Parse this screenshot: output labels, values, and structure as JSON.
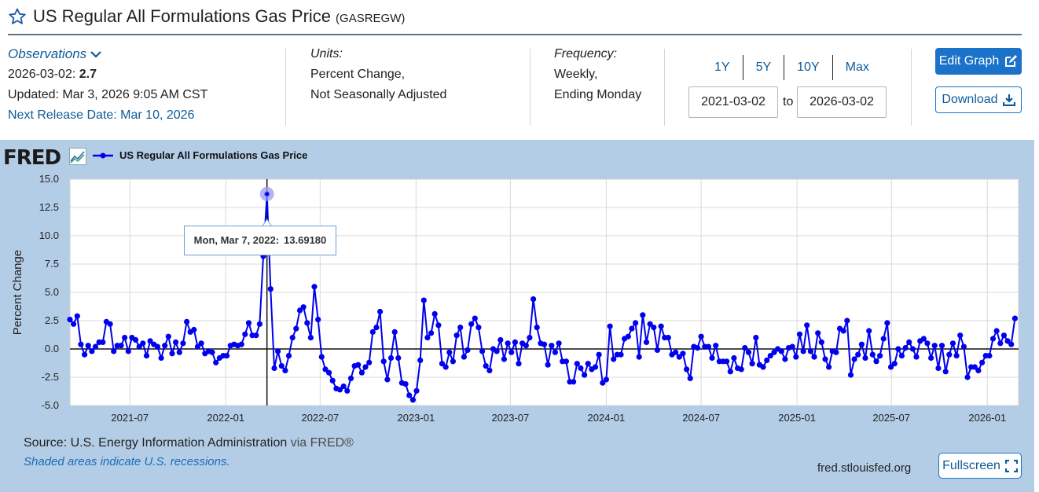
{
  "header": {
    "title": "US Regular All Formulations Gas Price",
    "series_id": "(GASREGW)"
  },
  "observations": {
    "label": "Observations",
    "date": "2026-03-02:",
    "value": "2.7",
    "updated": "Updated: Mar 3, 2026 9:05 AM CST",
    "next_release": "Next Release Date: Mar 10, 2026"
  },
  "units": {
    "label": "Units:",
    "line1": "Percent Change,",
    "line2": "Not Seasonally Adjusted"
  },
  "frequency": {
    "label": "Frequency:",
    "line1": "Weekly,",
    "line2": "Ending Monday"
  },
  "range": {
    "buttons": [
      "1Y",
      "5Y",
      "10Y",
      "Max"
    ],
    "start": "2021-03-02",
    "to_label": "to",
    "end": "2026-03-02"
  },
  "actions": {
    "edit_label": "Edit Graph",
    "download_label": "Download",
    "fullscreen_label": "Fullscreen"
  },
  "graph": {
    "logo": "FRED",
    "source_label": "Source: U.S. Energy Information Administration",
    "source_via": "via FRED®",
    "shaded_note": "Shaded areas indicate U.S. recessions.",
    "url": "fred.stlouisfed.org",
    "tooltip_date": "Mon, Mar 7, 2022:",
    "tooltip_value": "13.69180"
  },
  "colors": {
    "line": "#0000ee",
    "panel_bg": "#b4cde6",
    "accent": "#1a73c9",
    "link": "#0d5b9a"
  },
  "chart_data": {
    "type": "line",
    "title": "",
    "xlabel": "",
    "ylabel": "Percent Change",
    "ylim": [
      -5,
      15
    ],
    "yticks": [
      "15.0",
      "12.5",
      "10.0",
      "7.5",
      "5.0",
      "2.5",
      "0.0",
      "-2.5",
      "-5.0"
    ],
    "xticks": [
      "2021-07",
      "2022-01",
      "2022-07",
      "2023-01",
      "2023-07",
      "2024-01",
      "2024-07",
      "2025-01",
      "2025-07",
      "2026-01"
    ],
    "grid": true,
    "legend_position": "top-left",
    "series": [
      {
        "name": "US Regular All Formulations Gas Price",
        "x_start": "2021-03-08",
        "x_step_days": 7,
        "values": [
          2.6,
          2.2,
          2.9,
          0.4,
          -0.5,
          0.3,
          -0.2,
          0.2,
          0.6,
          0.6,
          2.4,
          2.2,
          -0.2,
          0.3,
          0.3,
          1.0,
          -0.2,
          1.0,
          0.8,
          0.2,
          0.5,
          -0.6,
          0.7,
          0.4,
          0.2,
          -0.8,
          0.3,
          1.1,
          -0.4,
          0.6,
          -0.3,
          0.5,
          2.4,
          1.5,
          1.7,
          0.2,
          0.5,
          -0.4,
          -0.2,
          -0.3,
          -1.2,
          -0.8,
          -0.6,
          -0.6,
          0.3,
          0.4,
          0.3,
          0.4,
          1.3,
          2.3,
          1.2,
          1.2,
          2.2,
          8.2,
          13.69,
          5.3,
          -1.7,
          -0.2,
          -1.5,
          -1.9,
          -0.6,
          1.0,
          1.8,
          3.4,
          3.7,
          2.3,
          1.0,
          5.5,
          2.6,
          -0.7,
          -1.8,
          -2.1,
          -2.8,
          -3.5,
          -3.6,
          -3.3,
          -3.7,
          -2.6,
          -1.5,
          -1.4,
          -2.1,
          -1.6,
          -1.2,
          1.5,
          1.9,
          3.3,
          -1.1,
          -2.7,
          -0.8,
          1.5,
          -0.8,
          -3.0,
          -3.1,
          -4.1,
          -4.5,
          -3.7,
          -1.0,
          4.3,
          1.0,
          1.4,
          3.1,
          2.1,
          -1.3,
          -1.6,
          -0.3,
          -1.1,
          1.2,
          1.9,
          -0.7,
          -0.1,
          2.2,
          2.7,
          1.9,
          -0.2,
          -1.5,
          -1.9,
          0.0,
          -0.2,
          0.8,
          -0.9,
          0.5,
          -0.3,
          0.6,
          -1.3,
          0.5,
          0.3,
          1.0,
          4.4,
          1.9,
          0.5,
          0.4,
          -1.4,
          0.3,
          -0.3,
          0.5,
          -1.1,
          -1.1,
          -2.9,
          -2.9,
          -1.3,
          -1.7,
          -2.3,
          -1.3,
          -1.8,
          -1.6,
          -0.5,
          -3.0,
          -2.7,
          2.0,
          -0.9,
          -0.5,
          -0.5,
          0.9,
          1.1,
          1.8,
          2.3,
          -0.7,
          3.0,
          0.6,
          2.2,
          1.9,
          -0.1,
          2.0,
          1.0,
          1.0,
          -0.5,
          -0.3,
          -0.7,
          -0.4,
          -1.8,
          -2.6,
          0.2,
          0.1,
          1.1,
          0.2,
          0.2,
          -0.8,
          0.3,
          -1.1,
          -1.1,
          -1.1,
          -2.0,
          -0.8,
          -1.7,
          -1.8,
          0.1,
          -0.3,
          -1.3,
          1.0,
          -1.4,
          -1.6,
          -1.0,
          -0.6,
          -0.3,
          0.0,
          -0.2,
          -0.9,
          0.1,
          0.2,
          -0.7,
          1.3,
          -0.2,
          2.1,
          -0.2,
          -0.7,
          1.4,
          0.6,
          -0.9,
          -1.6,
          -0.2,
          -0.3,
          1.8,
          1.6,
          2.5,
          -2.3,
          -0.9,
          -0.5,
          0.4,
          -0.8,
          1.6,
          -0.5,
          -1.1,
          -0.6,
          0.9,
          2.3,
          -1.6,
          -1.3,
          0.0,
          -0.6,
          0.1,
          0.6,
          0.0,
          -0.7,
          0.7,
          0.9,
          0.5,
          -0.8,
          0.3,
          -1.7,
          0.3,
          -2.0,
          -0.5,
          0.5,
          -0.6,
          1.2,
          0.2,
          -2.5,
          -1.6,
          -1.6,
          -1.9,
          -1.2,
          -0.6,
          -0.6,
          0.9,
          1.6,
          0.5,
          1.2,
          0.7,
          0.4,
          2.7
        ]
      }
    ]
  }
}
